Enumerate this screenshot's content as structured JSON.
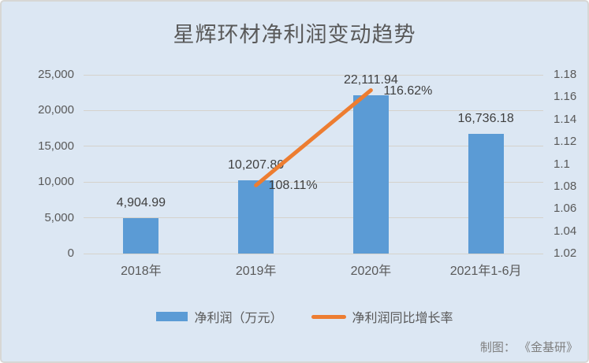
{
  "title": "星辉环材净利润变动趋势",
  "source_note": "制图： 《金基研》",
  "colors": {
    "background": "#dce7f3",
    "bar": "#5b9bd5",
    "line": "#ed7d31",
    "gridline": "#d5d2cb",
    "axis_text": "#595959",
    "data_label_text": "#3f3f3f"
  },
  "chart_data": {
    "type": "combo-bar-line",
    "title": "星辉环材净利润变动趋势",
    "categories": [
      "2018年",
      "2019年",
      "2020年",
      "2021年1-6月"
    ],
    "series": [
      {
        "name": "净利润（万元）",
        "type": "bar",
        "axis": "left",
        "color": "#5b9bd5",
        "values": [
          4904.99,
          10207.8,
          22111.94,
          16736.18
        ],
        "data_labels": [
          "4,904.99",
          "10,207.80",
          "22,111.94",
          "16,736.18"
        ]
      },
      {
        "name": "净利润同比增长率",
        "type": "line",
        "axis": "right",
        "color": "#ed7d31",
        "values": [
          null,
          1.0811,
          1.1662,
          null
        ],
        "data_labels": [
          null,
          "108.11%",
          "116.62%",
          null
        ]
      }
    ],
    "left_axis": {
      "min": 0,
      "max": 25000,
      "tick_labels": [
        "0",
        "5,000",
        "10,000",
        "15,000",
        "20,000",
        "25,000"
      ]
    },
    "right_axis": {
      "min": 1.02,
      "max": 1.18,
      "tick_labels": [
        "1.02",
        "1.04",
        "1.06",
        "1.08",
        "1.1",
        "1.12",
        "1.14",
        "1.16",
        "1.18"
      ]
    },
    "grid": true,
    "legend_position": "bottom",
    "legend": [
      {
        "label": "净利润（万元）"
      },
      {
        "label": "净利润同比增长率"
      }
    ]
  }
}
